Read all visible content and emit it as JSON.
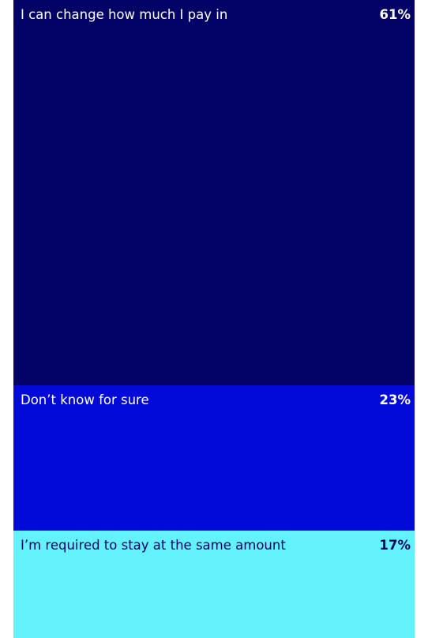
{
  "chart_data": {
    "type": "bar",
    "orientation": "stacked-vertical",
    "unit": "%",
    "categories": [
      "I can change how much I pay in",
      "Don’t know for sure",
      "I’m required to stay at the same amount"
    ],
    "values": [
      61,
      23,
      17
    ],
    "value_labels": [
      "61%",
      "23%",
      "17%"
    ],
    "colors": [
      "#020267",
      "#0309d6",
      "#63f2fb"
    ],
    "text_colors": [
      "#ffffff",
      "#ffffff",
      "#020267"
    ],
    "grid": false,
    "legend": "none"
  }
}
